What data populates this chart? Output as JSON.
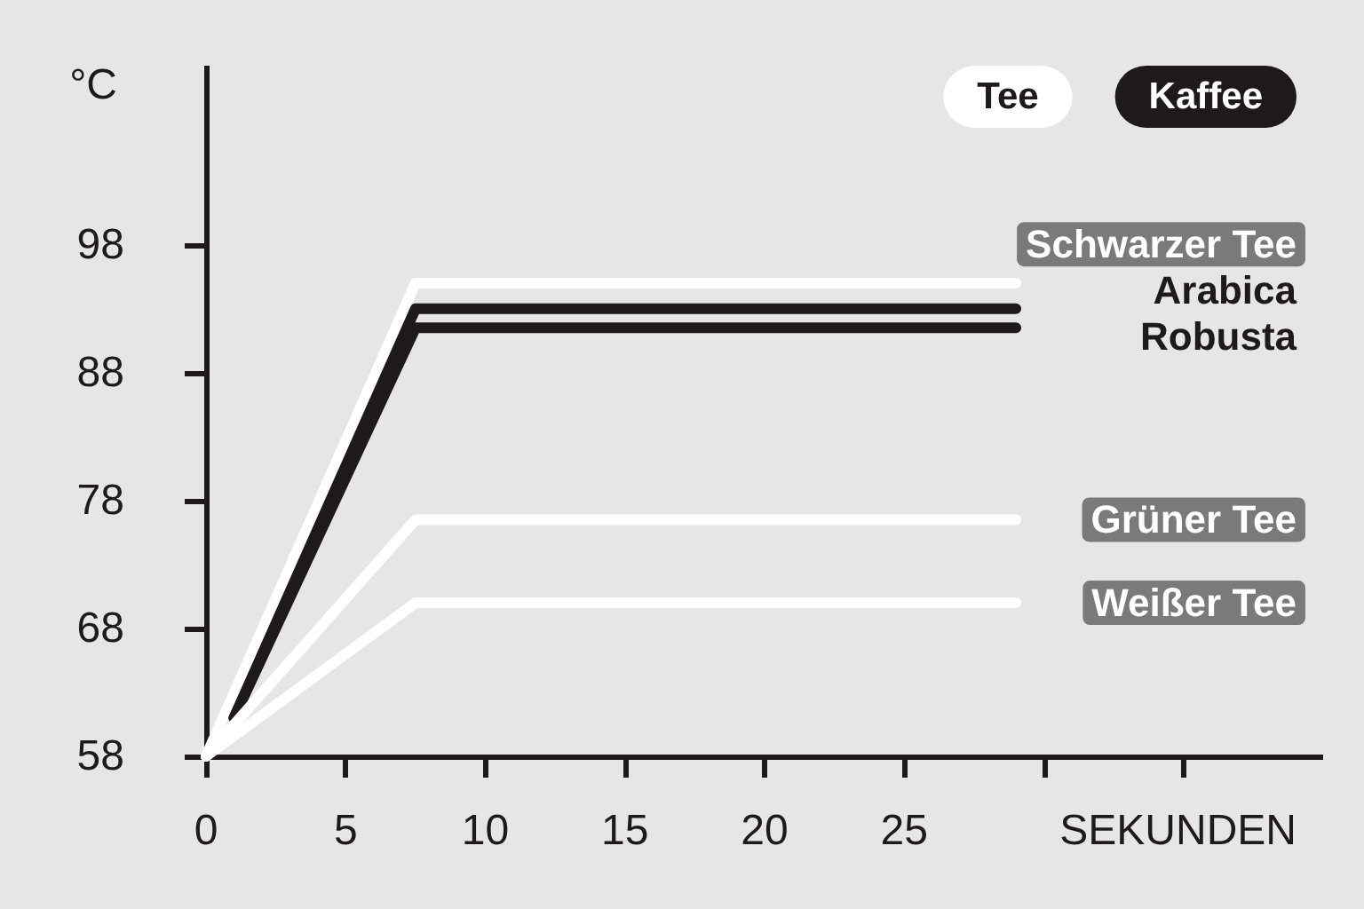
{
  "chart_data": {
    "type": "line",
    "ylabel": "°C",
    "xlabel": "SEKUNDEN",
    "xlim": [
      0,
      40
    ],
    "xticks": [
      0,
      5,
      10,
      15,
      20,
      25,
      {
        "value": 30,
        "label": null
      },
      {
        "value": 35,
        "label": null
      }
    ],
    "ylim": [
      58,
      112
    ],
    "yticks": [
      58,
      68,
      78,
      88,
      98
    ],
    "marker": "none",
    "line_style": "solid",
    "annotations": [
      "Tee",
      "Kaffee"
    ],
    "series": [
      {
        "name": "Schwarzer Tee",
        "color": "#ffffff",
        "x": [
          0,
          7.5,
          29
        ],
        "values": [
          58,
          95,
          95
        ]
      },
      {
        "name": "Arabica",
        "color": "#1e1a1a",
        "x": [
          1,
          7.5,
          29
        ],
        "values": [
          61,
          93,
          93
        ]
      },
      {
        "name": "Robusta",
        "color": "#1e1a1a",
        "x": [
          1,
          7.5,
          29
        ],
        "values": [
          61,
          91.5,
          91.5
        ]
      },
      {
        "name": "Grüner Tee",
        "color": "#ffffff",
        "x": [
          0,
          7.5,
          29
        ],
        "values": [
          58,
          76.5,
          76.5
        ]
      },
      {
        "name": "Weißer Tee",
        "color": "#ffffff",
        "x": [
          0,
          7.5,
          29
        ],
        "values": [
          58,
          70,
          70
        ]
      }
    ]
  }
}
